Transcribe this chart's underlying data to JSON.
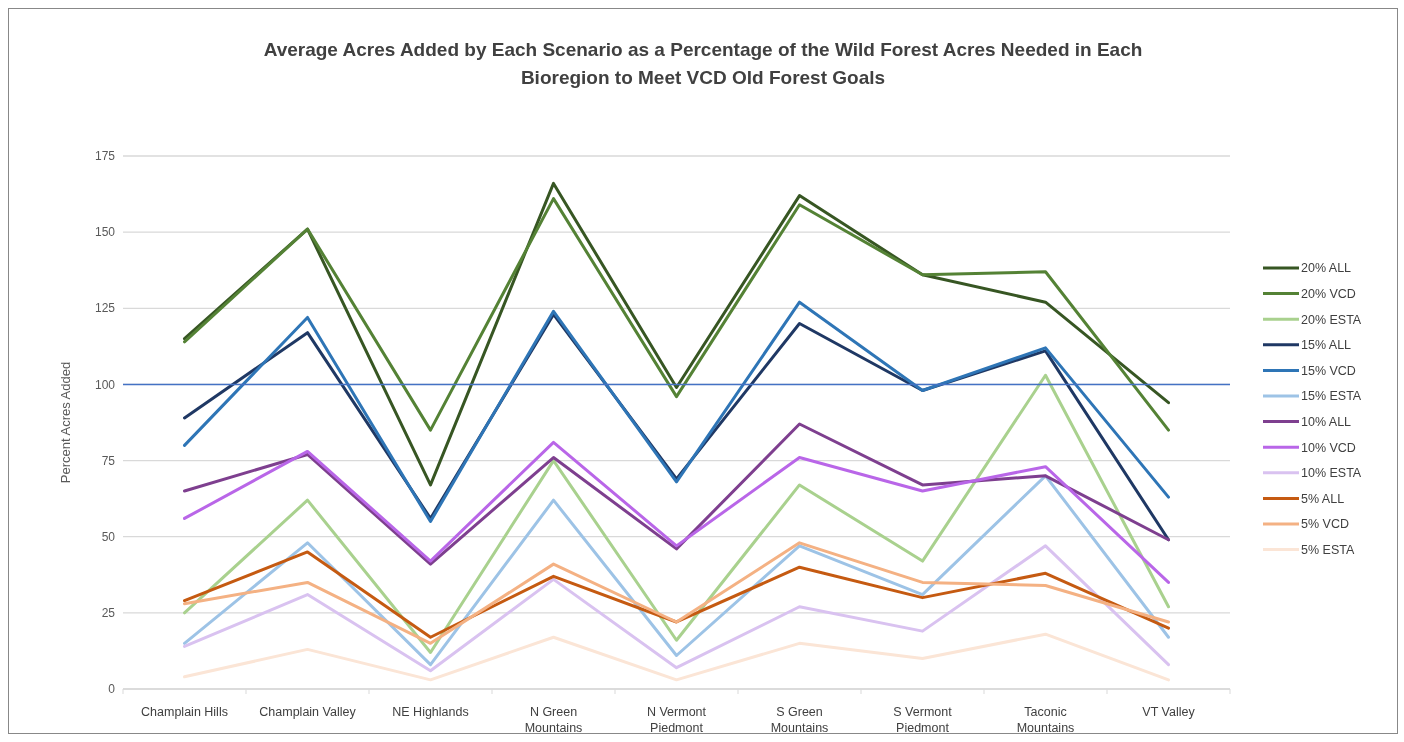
{
  "chart_data": {
    "type": "line",
    "title": "Average Acres Added by Each Scenario as a Percentage of the Wild Forest Acres Needed in Each Bioregion to Meet VCD Old Forest Goals",
    "ylabel": "Percent Acres Added",
    "categories": [
      "Champlain Hills",
      "Champlain Valley",
      "NE Highlands",
      "N Green Mountains",
      "N Vermont Piedmont",
      "S Green Mountains",
      "S Vermont Piedmont",
      "Taconic Mountains",
      "VT Valley"
    ],
    "series": [
      {
        "name": "20% ALL",
        "color": "#375623",
        "values": [
          115,
          151,
          67,
          166,
          99,
          162,
          136,
          127,
          94
        ]
      },
      {
        "name": "20% VCD",
        "color": "#548235",
        "values": [
          114,
          151,
          85,
          161,
          96,
          159,
          136,
          137,
          85
        ]
      },
      {
        "name": "20% ESTA",
        "color": "#a9d18e",
        "values": [
          25,
          62,
          12,
          75,
          16,
          67,
          42,
          103,
          27
        ]
      },
      {
        "name": "15% ALL",
        "color": "#1f3864",
        "values": [
          89,
          117,
          56,
          123,
          69,
          120,
          98,
          111,
          49
        ]
      },
      {
        "name": "15% VCD",
        "color": "#2e75b6",
        "values": [
          80,
          122,
          55,
          124,
          68,
          127,
          98,
          112,
          63
        ]
      },
      {
        "name": "15% ESTA",
        "color": "#9dc3e6",
        "values": [
          15,
          48,
          8,
          62,
          11,
          47,
          31,
          70,
          17
        ]
      },
      {
        "name": "10% ALL",
        "color": "#7e3f8f",
        "values": [
          65,
          77,
          41,
          76,
          46,
          87,
          67,
          70,
          49
        ]
      },
      {
        "name": "10% VCD",
        "color": "#b966e8",
        "values": [
          56,
          78,
          42,
          81,
          47,
          76,
          65,
          73,
          35
        ]
      },
      {
        "name": "10% ESTA",
        "color": "#d9c2f0",
        "values": [
          14,
          31,
          6,
          36,
          7,
          27,
          19,
          47,
          8
        ]
      },
      {
        "name": "5% ALL",
        "color": "#c55a11",
        "values": [
          29,
          45,
          17,
          37,
          22,
          40,
          30,
          38,
          20
        ]
      },
      {
        "name": "5% VCD",
        "color": "#f4b183",
        "values": [
          28,
          35,
          15,
          41,
          22,
          48,
          35,
          34,
          22
        ]
      },
      {
        "name": "5% ESTA",
        "color": "#fbe5d6",
        "values": [
          4,
          13,
          3,
          17,
          3,
          15,
          10,
          18,
          3
        ]
      }
    ],
    "ylim": [
      0,
      175
    ],
    "yticks": [
      0,
      25,
      50,
      75,
      100,
      125,
      150,
      175
    ],
    "grid": "y",
    "legend": "right",
    "marker": "none",
    "line_style": "solid",
    "ref_lines": [
      {
        "axis": "y",
        "value": 100,
        "color": "#4472c4"
      }
    ]
  }
}
